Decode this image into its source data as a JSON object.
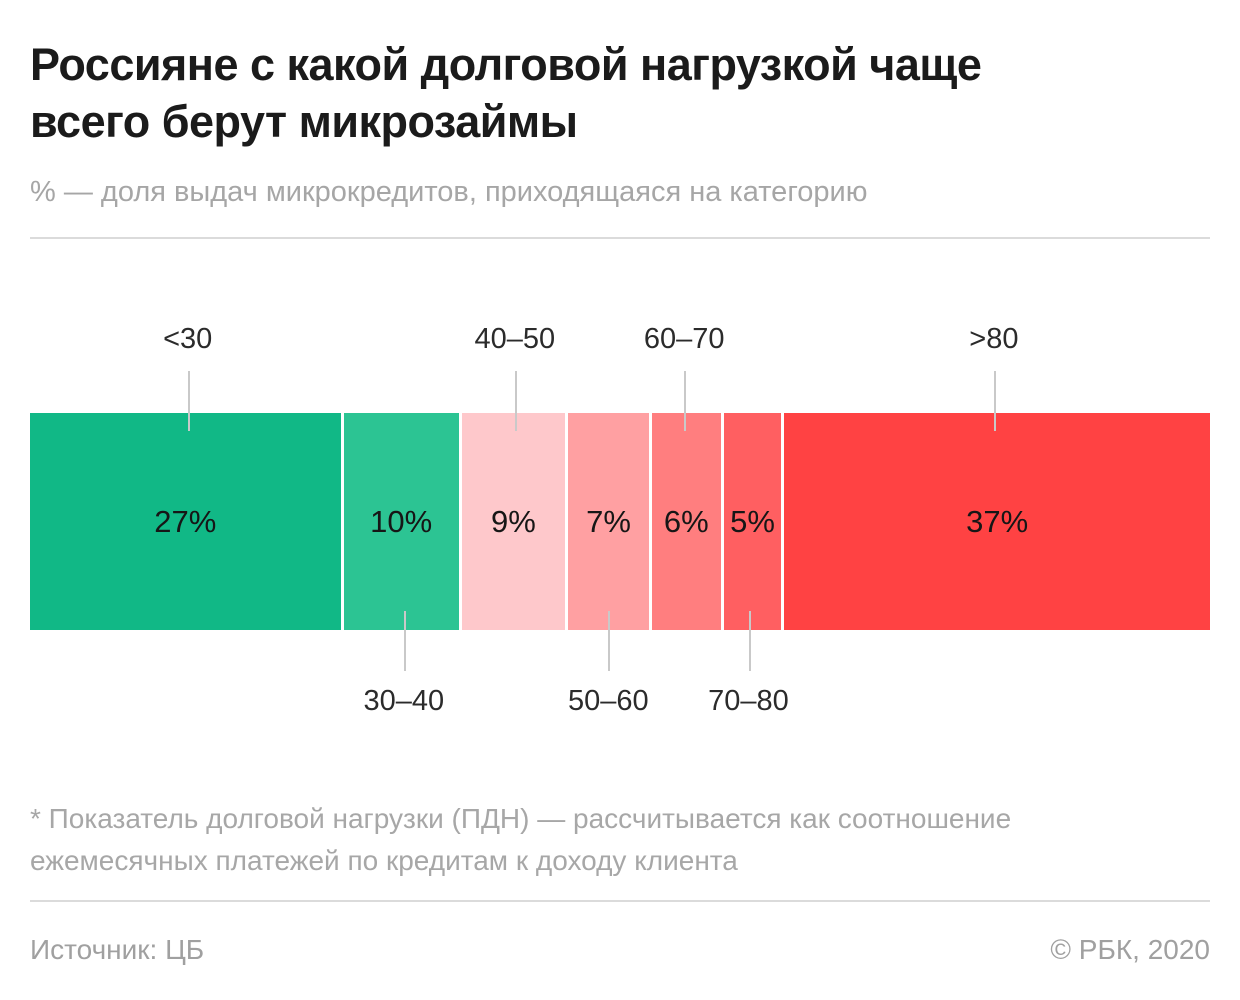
{
  "header": {
    "title_line1": "Россияне с какой долговой нагрузкой чаще",
    "title_line2": "всего берут микрозаймы",
    "title_full": "Россияне с какой долговой нагрузкой чаще всего берут микрозаймы",
    "subtitle": "% — доля выдач микрокредитов, приходящаяся на категорию"
  },
  "chart_data": {
    "type": "bar",
    "subtype": "horizontal-stacked-100",
    "title": "Россияне с какой долговой нагрузкой чаще всего берут микрозаймы",
    "unit": "%",
    "categories": [
      "<30",
      "30–40",
      "40–50",
      "50–60",
      "60–70",
      "70–80",
      ">80"
    ],
    "values": [
      27,
      10,
      9,
      7,
      6,
      5,
      37
    ],
    "value_labels": [
      "27%",
      "10%",
      "9%",
      "7%",
      "6%",
      "5%",
      "37%"
    ],
    "colors": [
      "#11b886",
      "#2cc493",
      "#fec8cb",
      "#ffa0a2",
      "#ff7e7f",
      "#ff5f61",
      "#ff4243"
    ],
    "label_positions": [
      "top",
      "bottom",
      "top",
      "bottom",
      "top",
      "bottom",
      "top"
    ],
    "leader_line_color": "#c9c9c9",
    "gap_color": "#ffffff",
    "legend": "none",
    "axes": "none"
  },
  "footnote": {
    "line1": "* Показатель долговой нагрузки (ПДН) — рассчитывается как соотношение",
    "line2": "ежемесячных платежей по кредитам к доходу клиента"
  },
  "footer": {
    "source": "Источник: ЦБ",
    "copyright": "© РБК, 2020"
  }
}
